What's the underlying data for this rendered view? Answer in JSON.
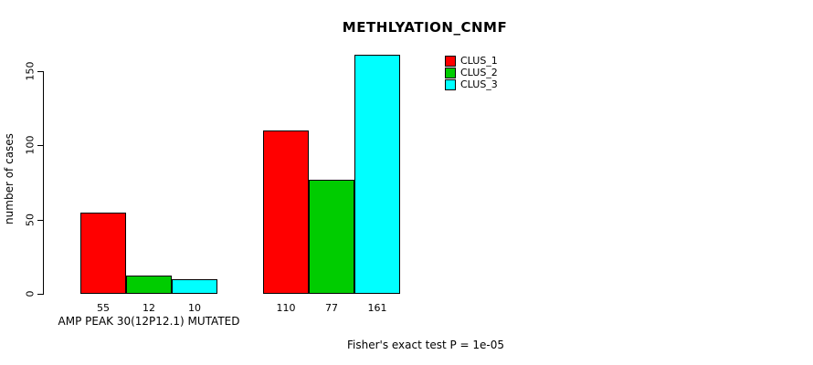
{
  "title": "METHLYATION_CNMF",
  "footer": "Fisher's exact test P = 1e-05",
  "chart_data": {
    "type": "bar",
    "title": "METHLYATION_CNMF",
    "xlabel": "AMP PEAK 30(12P12.1) MUTATED",
    "ylabel": "number of cases",
    "ylim": [
      0,
      161
    ],
    "yticks": [
      0,
      50,
      100,
      150
    ],
    "grid": false,
    "legend_position": "top-right",
    "groups": [
      {
        "label": "AMP PEAK 30(12P12.1) MUTATED",
        "values": [
          55,
          12,
          10
        ]
      },
      {
        "label": "",
        "values": [
          110,
          77,
          161
        ]
      }
    ],
    "series": [
      {
        "name": "CLUS_1",
        "color": "#ff0000"
      },
      {
        "name": "CLUS_2",
        "color": "#00cc00"
      },
      {
        "name": "CLUS_3",
        "color": "#00ffff"
      }
    ],
    "bar_labels": [
      [
        55,
        12,
        10
      ],
      [
        110,
        77,
        161
      ]
    ],
    "annotation": "Fisher's exact test P = 1e-05"
  }
}
